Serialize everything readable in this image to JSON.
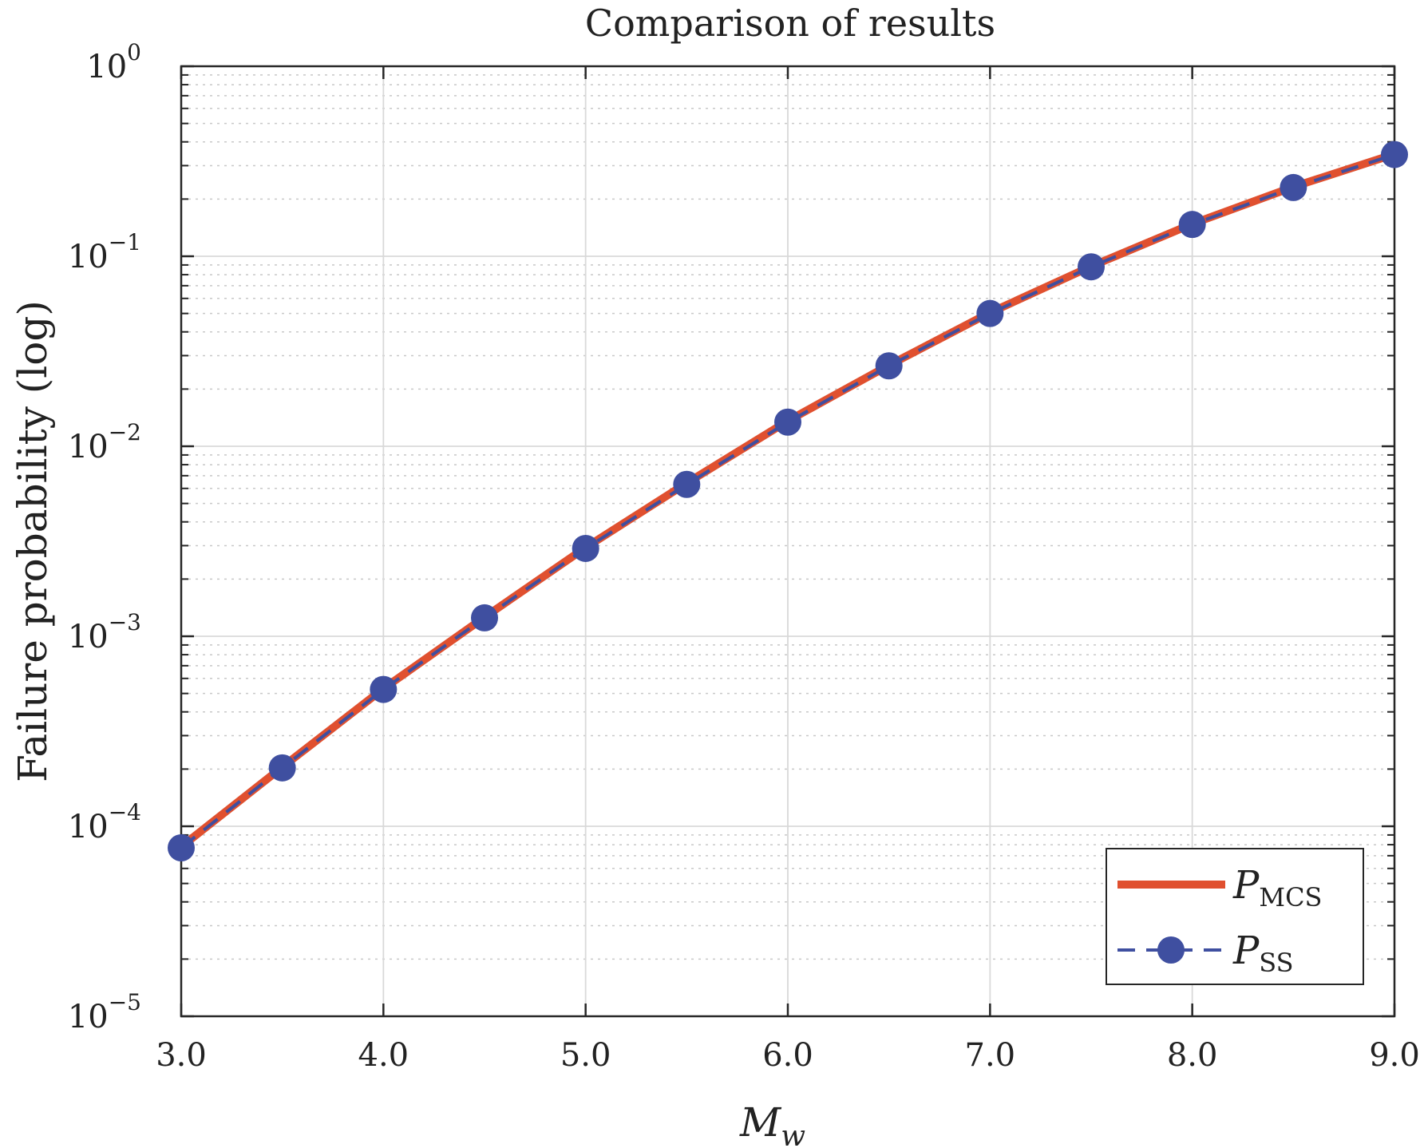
{
  "chart_data": {
    "type": "line",
    "title": "Comparison of results",
    "xlabel": {
      "main": "M",
      "sub": "w"
    },
    "ylabel": "Failure probability (log)",
    "xlim": [
      3.0,
      9.0
    ],
    "ylim": [
      1e-05,
      1
    ],
    "yscale": "log",
    "grid": true,
    "x_ticks": [
      "3.0",
      "4.0",
      "5.0",
      "6.0",
      "7.0",
      "8.0",
      "9.0"
    ],
    "x_tick_values": [
      3,
      4,
      5,
      6,
      7,
      8,
      9
    ],
    "y_ticks": [
      {
        "base": "10",
        "exp": "0",
        "value": 1
      },
      {
        "base": "10",
        "exp": "−1",
        "value": 0.1
      },
      {
        "base": "10",
        "exp": "−2",
        "value": 0.01
      },
      {
        "base": "10",
        "exp": "−3",
        "value": 0.001
      },
      {
        "base": "10",
        "exp": "−4",
        "value": 0.0001
      },
      {
        "base": "10",
        "exp": "−5",
        "value": 1e-05
      }
    ],
    "x": [
      3.0,
      3.5,
      4.0,
      4.5,
      5.0,
      5.5,
      6.0,
      6.5,
      7.0,
      7.5,
      8.0,
      8.5,
      9.0
    ],
    "series": [
      {
        "name": "P_MCS",
        "label_main": "P",
        "label_sub": "MCS",
        "color": "#e0502f",
        "style": "solid",
        "values": [
          7.8e-05,
          0.000205,
          0.00053,
          0.00126,
          0.00293,
          0.0064,
          0.0136,
          0.0267,
          0.0505,
          0.0885,
          0.148,
          0.232,
          0.345
        ]
      },
      {
        "name": "P_SS",
        "label_main": "P",
        "label_sub": "SS",
        "color": "#3f4fa0",
        "style": "dashed-markers",
        "values": [
          7.7e-05,
          0.000203,
          0.000525,
          0.00125,
          0.0029,
          0.0063,
          0.0134,
          0.0265,
          0.05,
          0.088,
          0.147,
          0.23,
          0.343
        ]
      }
    ],
    "legend": "bottom-right"
  }
}
